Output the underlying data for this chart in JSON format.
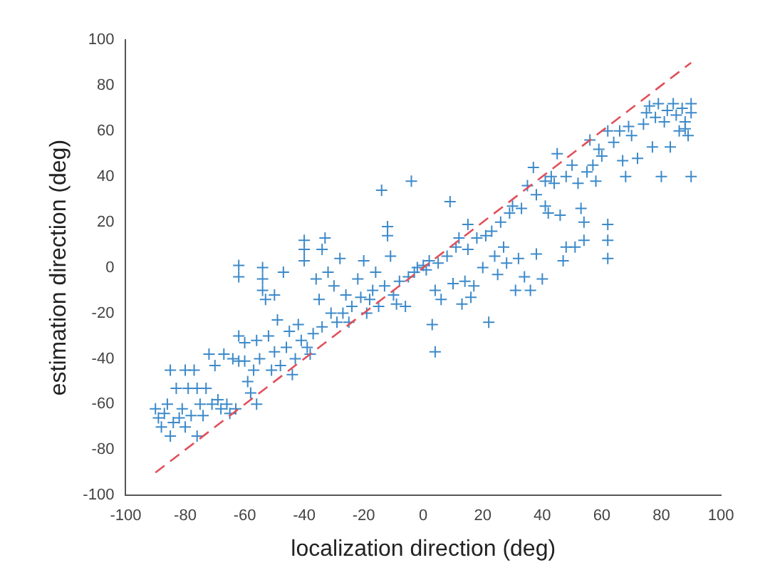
{
  "chart_data": {
    "type": "scatter",
    "xlabel": "localization direction (deg)",
    "ylabel": "estimation direction (deg)",
    "xlim": [
      -100,
      100
    ],
    "ylim": [
      -100,
      100
    ],
    "xticks": [
      -100,
      -80,
      -60,
      -40,
      -20,
      0,
      20,
      40,
      60,
      80,
      100
    ],
    "yticks": [
      -100,
      -80,
      -60,
      -40,
      -20,
      0,
      20,
      40,
      60,
      80,
      100
    ],
    "grid": false,
    "legend": false,
    "marker": "cross",
    "series": [
      {
        "color": "#3d8ac9",
        "x": [
          -90,
          -89,
          -88,
          -87,
          -86,
          -85,
          -85,
          -84,
          -83,
          -82,
          -81,
          -80,
          -80,
          -79,
          -78,
          -77,
          -76,
          -76,
          -75,
          -74,
          -73,
          -72,
          -71,
          -70,
          -69,
          -68,
          -67,
          -66,
          -65,
          -64,
          -63,
          -62,
          -62,
          -62,
          -62,
          -60,
          -60,
          -59,
          -58,
          -57,
          -56,
          -56,
          -55,
          -54,
          -54,
          -54,
          -53,
          -52,
          -51,
          -50,
          -50,
          -49,
          -48,
          -47,
          -46,
          -45,
          -44,
          -43,
          -42,
          -41,
          -40,
          -40,
          -40,
          -39,
          -38,
          -37,
          -36,
          -35,
          -34,
          -34,
          -33,
          -32,
          -31,
          -30,
          -29,
          -28,
          -27,
          -26,
          -25,
          -24,
          -22,
          -21,
          -20,
          -19,
          -18,
          -17,
          -16,
          -15,
          -14,
          -13,
          -12,
          -12,
          -11,
          -10,
          -9,
          -8,
          -6,
          -5,
          -4,
          -3,
          -2,
          0,
          1,
          2,
          3,
          4,
          4,
          5,
          6,
          8,
          9,
          10,
          11,
          12,
          13,
          14,
          15,
          15,
          16,
          17,
          18,
          20,
          21,
          22,
          23,
          24,
          25,
          26,
          27,
          28,
          29,
          30,
          31,
          32,
          33,
          34,
          35,
          36,
          37,
          38,
          38,
          40,
          41,
          41,
          42,
          43,
          44,
          45,
          46,
          47,
          48,
          48,
          50,
          51,
          52,
          53,
          54,
          54,
          55,
          56,
          57,
          58,
          59,
          60,
          62,
          62,
          62,
          62,
          64,
          66,
          67,
          68,
          69,
          70,
          72,
          74,
          75,
          76,
          77,
          78,
          79,
          80,
          81,
          82,
          83,
          84,
          85,
          86,
          87,
          88,
          88,
          89,
          90,
          90,
          90
        ],
        "values": [
          -62,
          -66,
          -70,
          -64,
          -60,
          -74,
          -45,
          -68,
          -53,
          -66,
          -62,
          -45,
          -70,
          -53,
          -65,
          -45,
          -74,
          -53,
          -60,
          -65,
          -53,
          -38,
          -60,
          -43,
          -58,
          -62,
          -38,
          -60,
          -64,
          -40,
          -62,
          -30,
          -41,
          1,
          -4,
          -33,
          -41,
          -50,
          -55,
          -45,
          -60,
          -32,
          -40,
          0,
          -5,
          -10,
          -14,
          -30,
          -45,
          -12,
          -37,
          -23,
          -43,
          -2,
          -35,
          -28,
          -47,
          -40,
          -25,
          -32,
          8,
          12,
          3,
          -35,
          -38,
          -29,
          -5,
          -14,
          -26,
          8,
          13,
          -2,
          -20,
          -8,
          -24,
          4,
          -20,
          -12,
          -24,
          -17,
          -5,
          -13,
          3,
          -20,
          -14,
          -10,
          -2,
          -17,
          34,
          -8,
          18,
          14,
          5,
          -12,
          -16,
          -6,
          -17,
          -4,
          38,
          -2,
          0,
          1,
          -1,
          3,
          -25,
          -37,
          -10,
          2,
          -14,
          5,
          29,
          -7,
          9,
          13,
          -16,
          -6,
          8,
          19,
          -13,
          -8,
          13,
          0,
          14,
          -24,
          16,
          5,
          -3,
          20,
          9,
          2,
          24,
          27,
          -10,
          4,
          26,
          -4,
          36,
          -10,
          44,
          6,
          32,
          -5,
          38,
          27,
          24,
          40,
          37,
          50,
          23,
          3,
          9,
          40,
          45,
          9,
          37,
          26,
          20,
          12,
          42,
          56,
          45,
          38,
          52,
          49,
          19,
          12,
          4,
          60,
          55,
          60,
          47,
          40,
          62,
          58,
          48,
          63,
          68,
          71,
          53,
          66,
          72,
          40,
          64,
          69,
          53,
          72,
          67,
          60,
          70,
          64,
          61,
          58,
          68,
          40,
          72
        ]
      },
      {
        "type": "line",
        "color": "#e0505a",
        "line_style": "dashed",
        "marker": "none",
        "x": [
          -90,
          90
        ],
        "values": [
          -90,
          90
        ]
      }
    ]
  }
}
